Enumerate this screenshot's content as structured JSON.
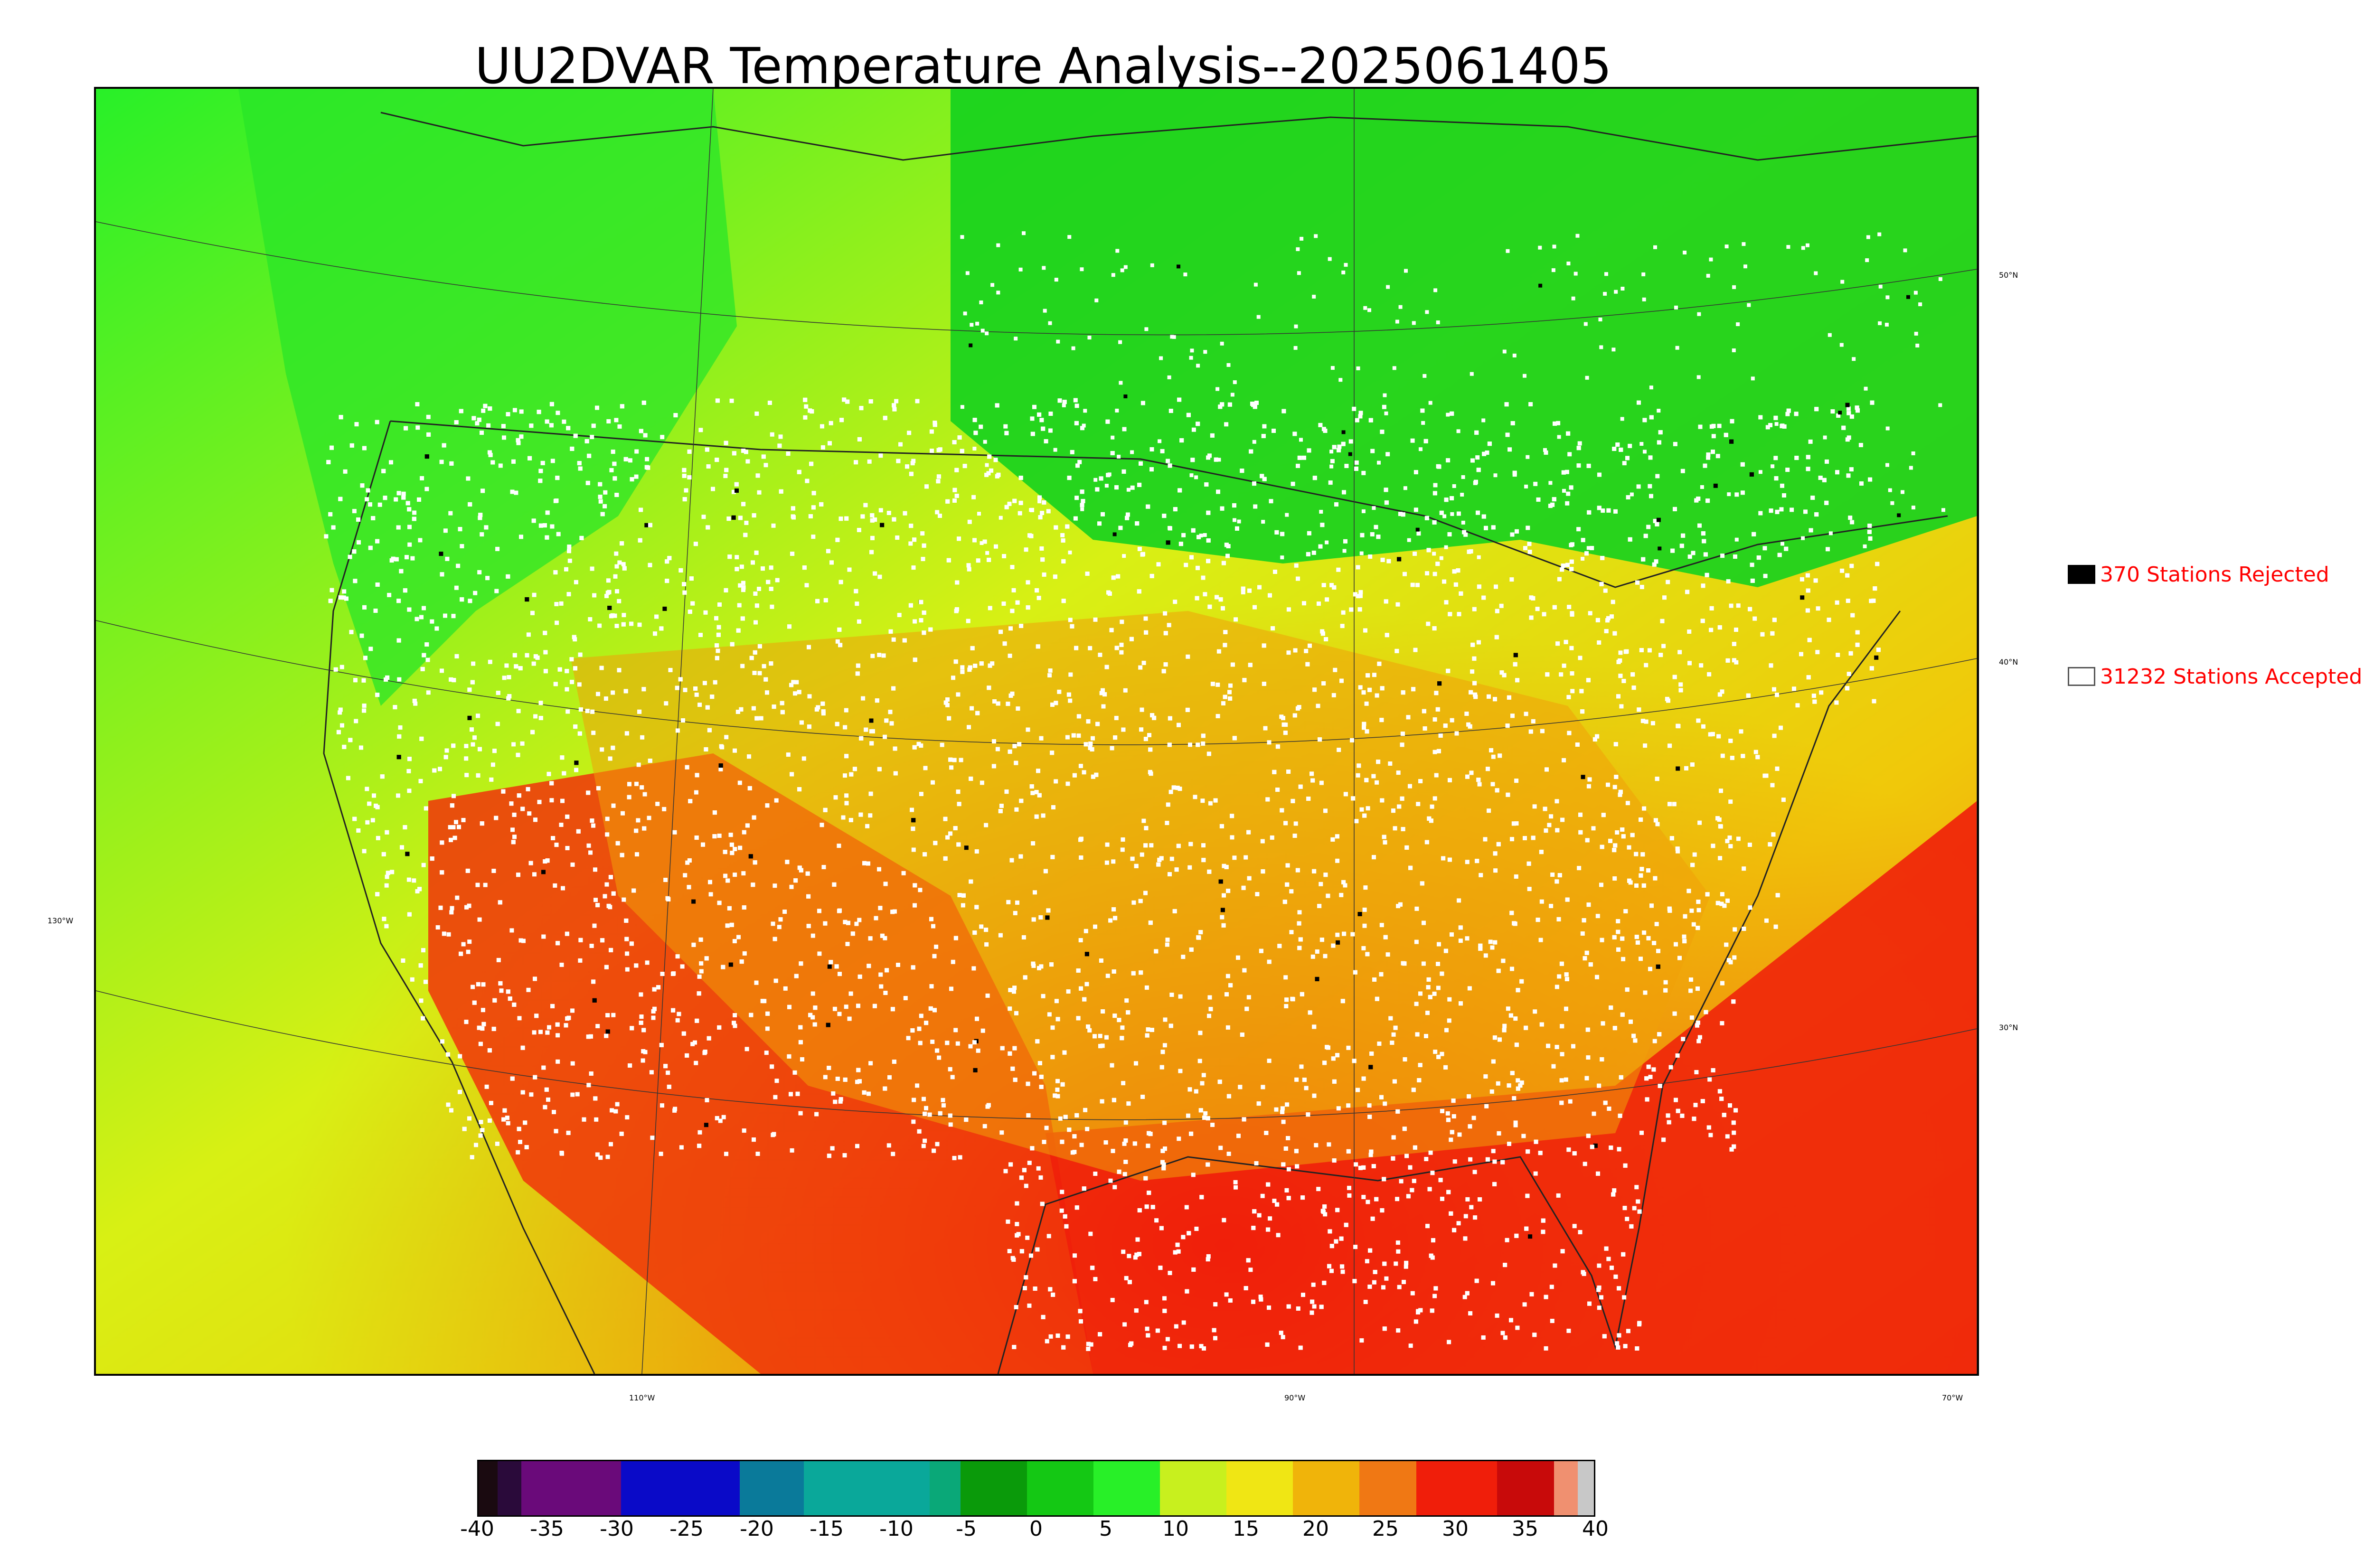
{
  "title": "UU2DVAR Temperature Analysis--2025061405",
  "map": {
    "longitude_labels": [
      "110°W",
      "90°W",
      "70°W"
    ],
    "latitude_labels": [
      "50°N",
      "40°N",
      "30°N"
    ],
    "left_longitude_label": "130°W"
  },
  "legend": {
    "rejected": {
      "label": "370 Stations Rejected",
      "color": "#000000"
    },
    "accepted": {
      "label": "31232 Stations Accepted",
      "color": "#ffffff"
    }
  },
  "colorbar": {
    "min": -40,
    "max": 40,
    "tick_labels": [
      "-40",
      "-35",
      "-30",
      "-25",
      "-20",
      "-15",
      "-10",
      "-5",
      "0",
      "5",
      "10",
      "15",
      "20",
      "25",
      "30",
      "35",
      "40"
    ],
    "colors": {
      "c1": "#1a0a10",
      "c2": "#2a0a3a",
      "c3": "#6a0a7a",
      "c4": "#0a0ac8",
      "c5": "#0a7a9a",
      "c6": "#0aa89a",
      "c7": "#0aa878",
      "c8": "#0a9a0a",
      "c9": "#14c814",
      "c10": "#28f028",
      "c11": "#c8f01e",
      "c12": "#f0e614",
      "c13": "#f0b40a",
      "c14": "#f07814",
      "c15": "#f01e0a",
      "c16": "#c80a0a",
      "c17": "#f09070",
      "c18": "#c8c8c8"
    }
  }
}
